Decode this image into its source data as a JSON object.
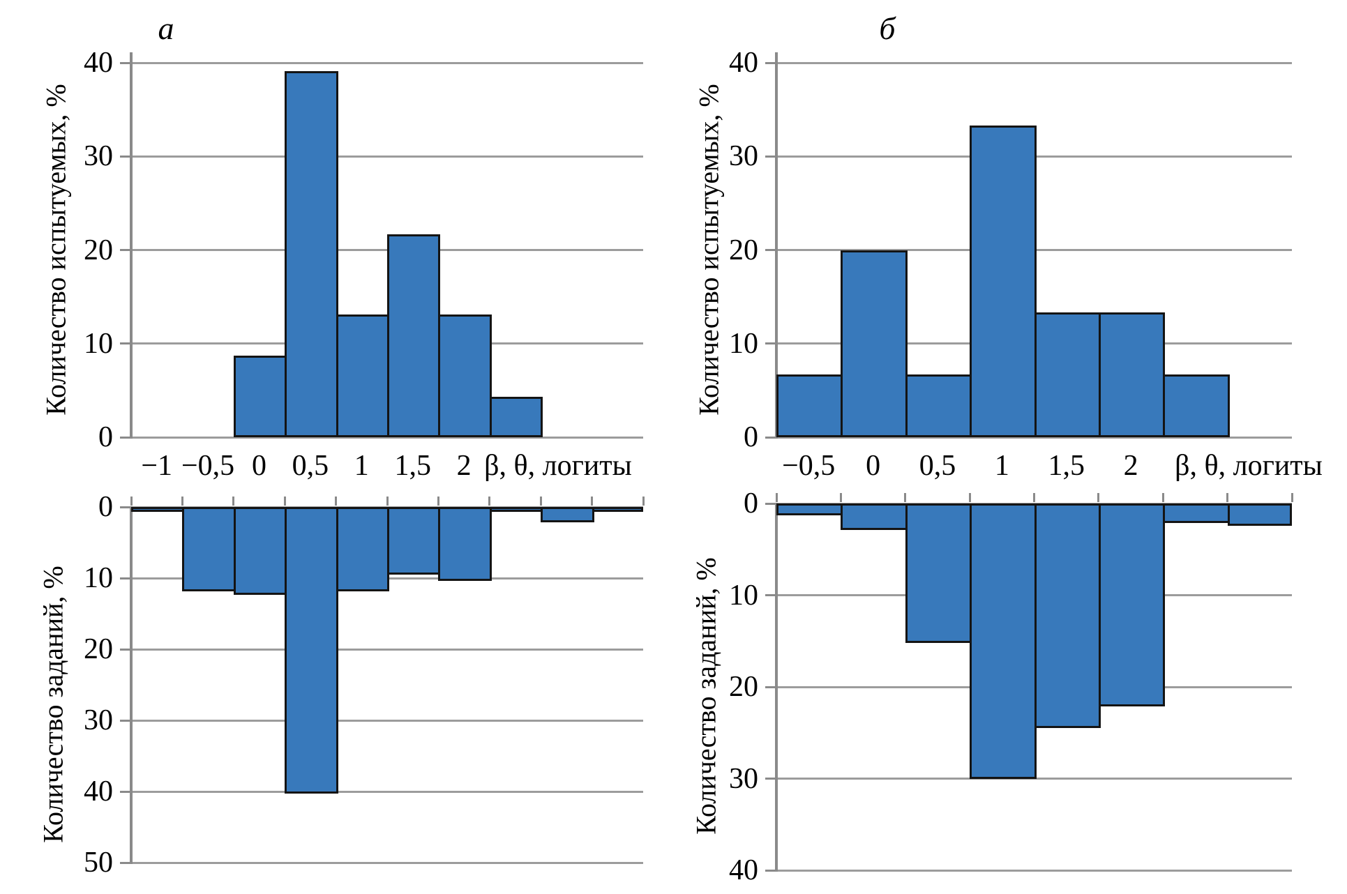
{
  "figure": {
    "panels": [
      {
        "label": "а"
      },
      {
        "label": "б"
      }
    ]
  },
  "colors": {
    "bar_fill": "#3879BB",
    "bar_border": "#141414",
    "gridline": "#9c9c9c",
    "axis": "#8a8a8a",
    "text": "#000000",
    "background": "#ffffff"
  },
  "chart_data": [
    {
      "type": "bar",
      "panel": "а",
      "position": "top-left",
      "direction": "up",
      "ylabel": "Количество испытуемых, %",
      "xlabel": "β, θ, логиты",
      "ylim": [
        0,
        40
      ],
      "yticks": [
        0,
        10,
        20,
        30,
        40
      ],
      "grid": true,
      "categories": [
        "−1",
        "−0,5",
        "0",
        "0,5",
        "1",
        "1,5",
        "2",
        "",
        "",
        ""
      ],
      "values": [
        0,
        0,
        8.7,
        39.1,
        13.1,
        21.7,
        13.1,
        4.3,
        0,
        0
      ]
    },
    {
      "type": "bar",
      "panel": "а",
      "position": "bottom-left",
      "direction": "down",
      "ylabel": "Количество заданий, %",
      "xlabel": "",
      "ylim": [
        0,
        50
      ],
      "yticks": [
        0,
        10,
        20,
        30,
        40,
        50
      ],
      "grid": true,
      "categories": [
        "−1",
        "−0,5",
        "0",
        "0,5",
        "1",
        "1,5",
        "2",
        "",
        "",
        ""
      ],
      "values": [
        0.5,
        11.9,
        12.4,
        40.3,
        11.9,
        9.5,
        10.4,
        0.5,
        2.2,
        0.5
      ]
    },
    {
      "type": "bar",
      "panel": "б",
      "position": "top-right",
      "direction": "up",
      "ylabel": "Количество испытуемых, %",
      "xlabel": "β, θ, логиты",
      "ylim": [
        0,
        40
      ],
      "yticks": [
        0,
        10,
        20,
        30,
        40
      ],
      "grid": true,
      "categories": [
        "−0,5",
        "0",
        "0,5",
        "1",
        "1,5",
        "2",
        "",
        ""
      ],
      "values": [
        6.7,
        20,
        6.7,
        33.3,
        13.3,
        13.3,
        6.7,
        0
      ]
    },
    {
      "type": "bar",
      "panel": "б",
      "position": "bottom-right",
      "direction": "down",
      "ylabel": "Количество заданий, %",
      "xlabel": "",
      "ylim": [
        0,
        40
      ],
      "yticks": [
        0,
        10,
        20,
        30,
        40
      ],
      "grid": true,
      "categories": [
        "−0,5",
        "0",
        "0,5",
        "1",
        "1,5",
        "2",
        "",
        ""
      ],
      "values": [
        1.3,
        2.9,
        15.2,
        30,
        24.5,
        22.1,
        2.1,
        2.4
      ]
    }
  ]
}
